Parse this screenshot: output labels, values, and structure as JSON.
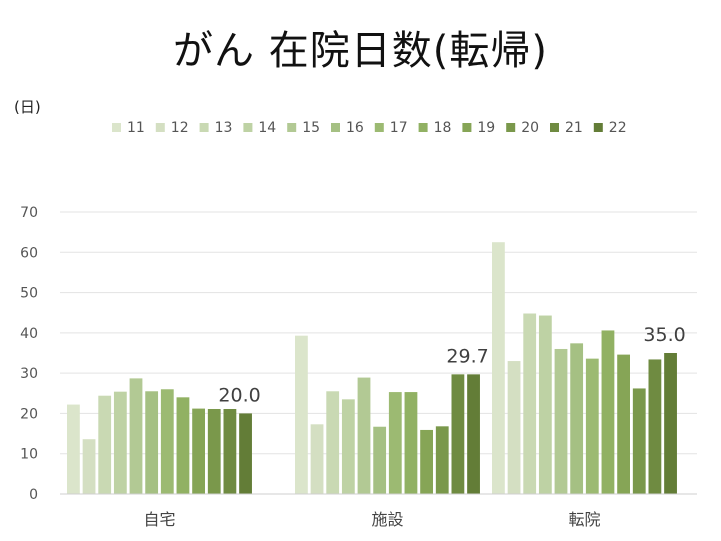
{
  "title": "がん 在院日数(転帰)",
  "unit": "(日)",
  "chart_data": {
    "type": "bar",
    "title": "がん 在院日数(転帰)",
    "ylabel": "(日)",
    "xlabel": "",
    "categories": [
      "自宅",
      "施設",
      "転院"
    ],
    "ylim": [
      0,
      70
    ],
    "yticks": [
      0,
      10,
      20,
      30,
      40,
      50,
      60,
      70
    ],
    "grid": true,
    "legend": "top",
    "series": [
      {
        "name": "11",
        "color": "#dbe5cb",
        "values": [
          22.2,
          39.3,
          62.5
        ]
      },
      {
        "name": "12",
        "color": "#d4dfc2",
        "values": [
          13.6,
          17.3,
          33.0
        ]
      },
      {
        "name": "13",
        "color": "#c9d9b3",
        "values": [
          24.4,
          25.5,
          44.8
        ]
      },
      {
        "name": "14",
        "color": "#bed2a4",
        "values": [
          25.4,
          23.5,
          44.3
        ]
      },
      {
        "name": "15",
        "color": "#b2c994",
        "values": [
          28.7,
          28.9,
          36.0
        ]
      },
      {
        "name": "16",
        "color": "#a5c083",
        "values": [
          25.5,
          16.7,
          37.4
        ]
      },
      {
        "name": "17",
        "color": "#9cba72",
        "values": [
          26.0,
          25.3,
          33.6
        ]
      },
      {
        "name": "18",
        "color": "#91b163",
        "values": [
          24.0,
          25.3,
          40.6
        ]
      },
      {
        "name": "19",
        "color": "#86a556",
        "values": [
          21.2,
          15.9,
          34.6
        ]
      },
      {
        "name": "20",
        "color": "#7a984b",
        "values": [
          21.1,
          16.8,
          26.2
        ]
      },
      {
        "name": "21",
        "color": "#6f8b41",
        "values": [
          21.1,
          29.7,
          33.4
        ]
      },
      {
        "name": "22",
        "color": "#637d37",
        "values": [
          20.0,
          29.7,
          35.0
        ]
      }
    ],
    "data_labels": [
      {
        "category": "自宅",
        "series": "22",
        "text": "20.0"
      },
      {
        "category": "施設",
        "series": "22",
        "text": "29.7"
      },
      {
        "category": "転院",
        "series": "22",
        "text": "35.0"
      }
    ]
  }
}
